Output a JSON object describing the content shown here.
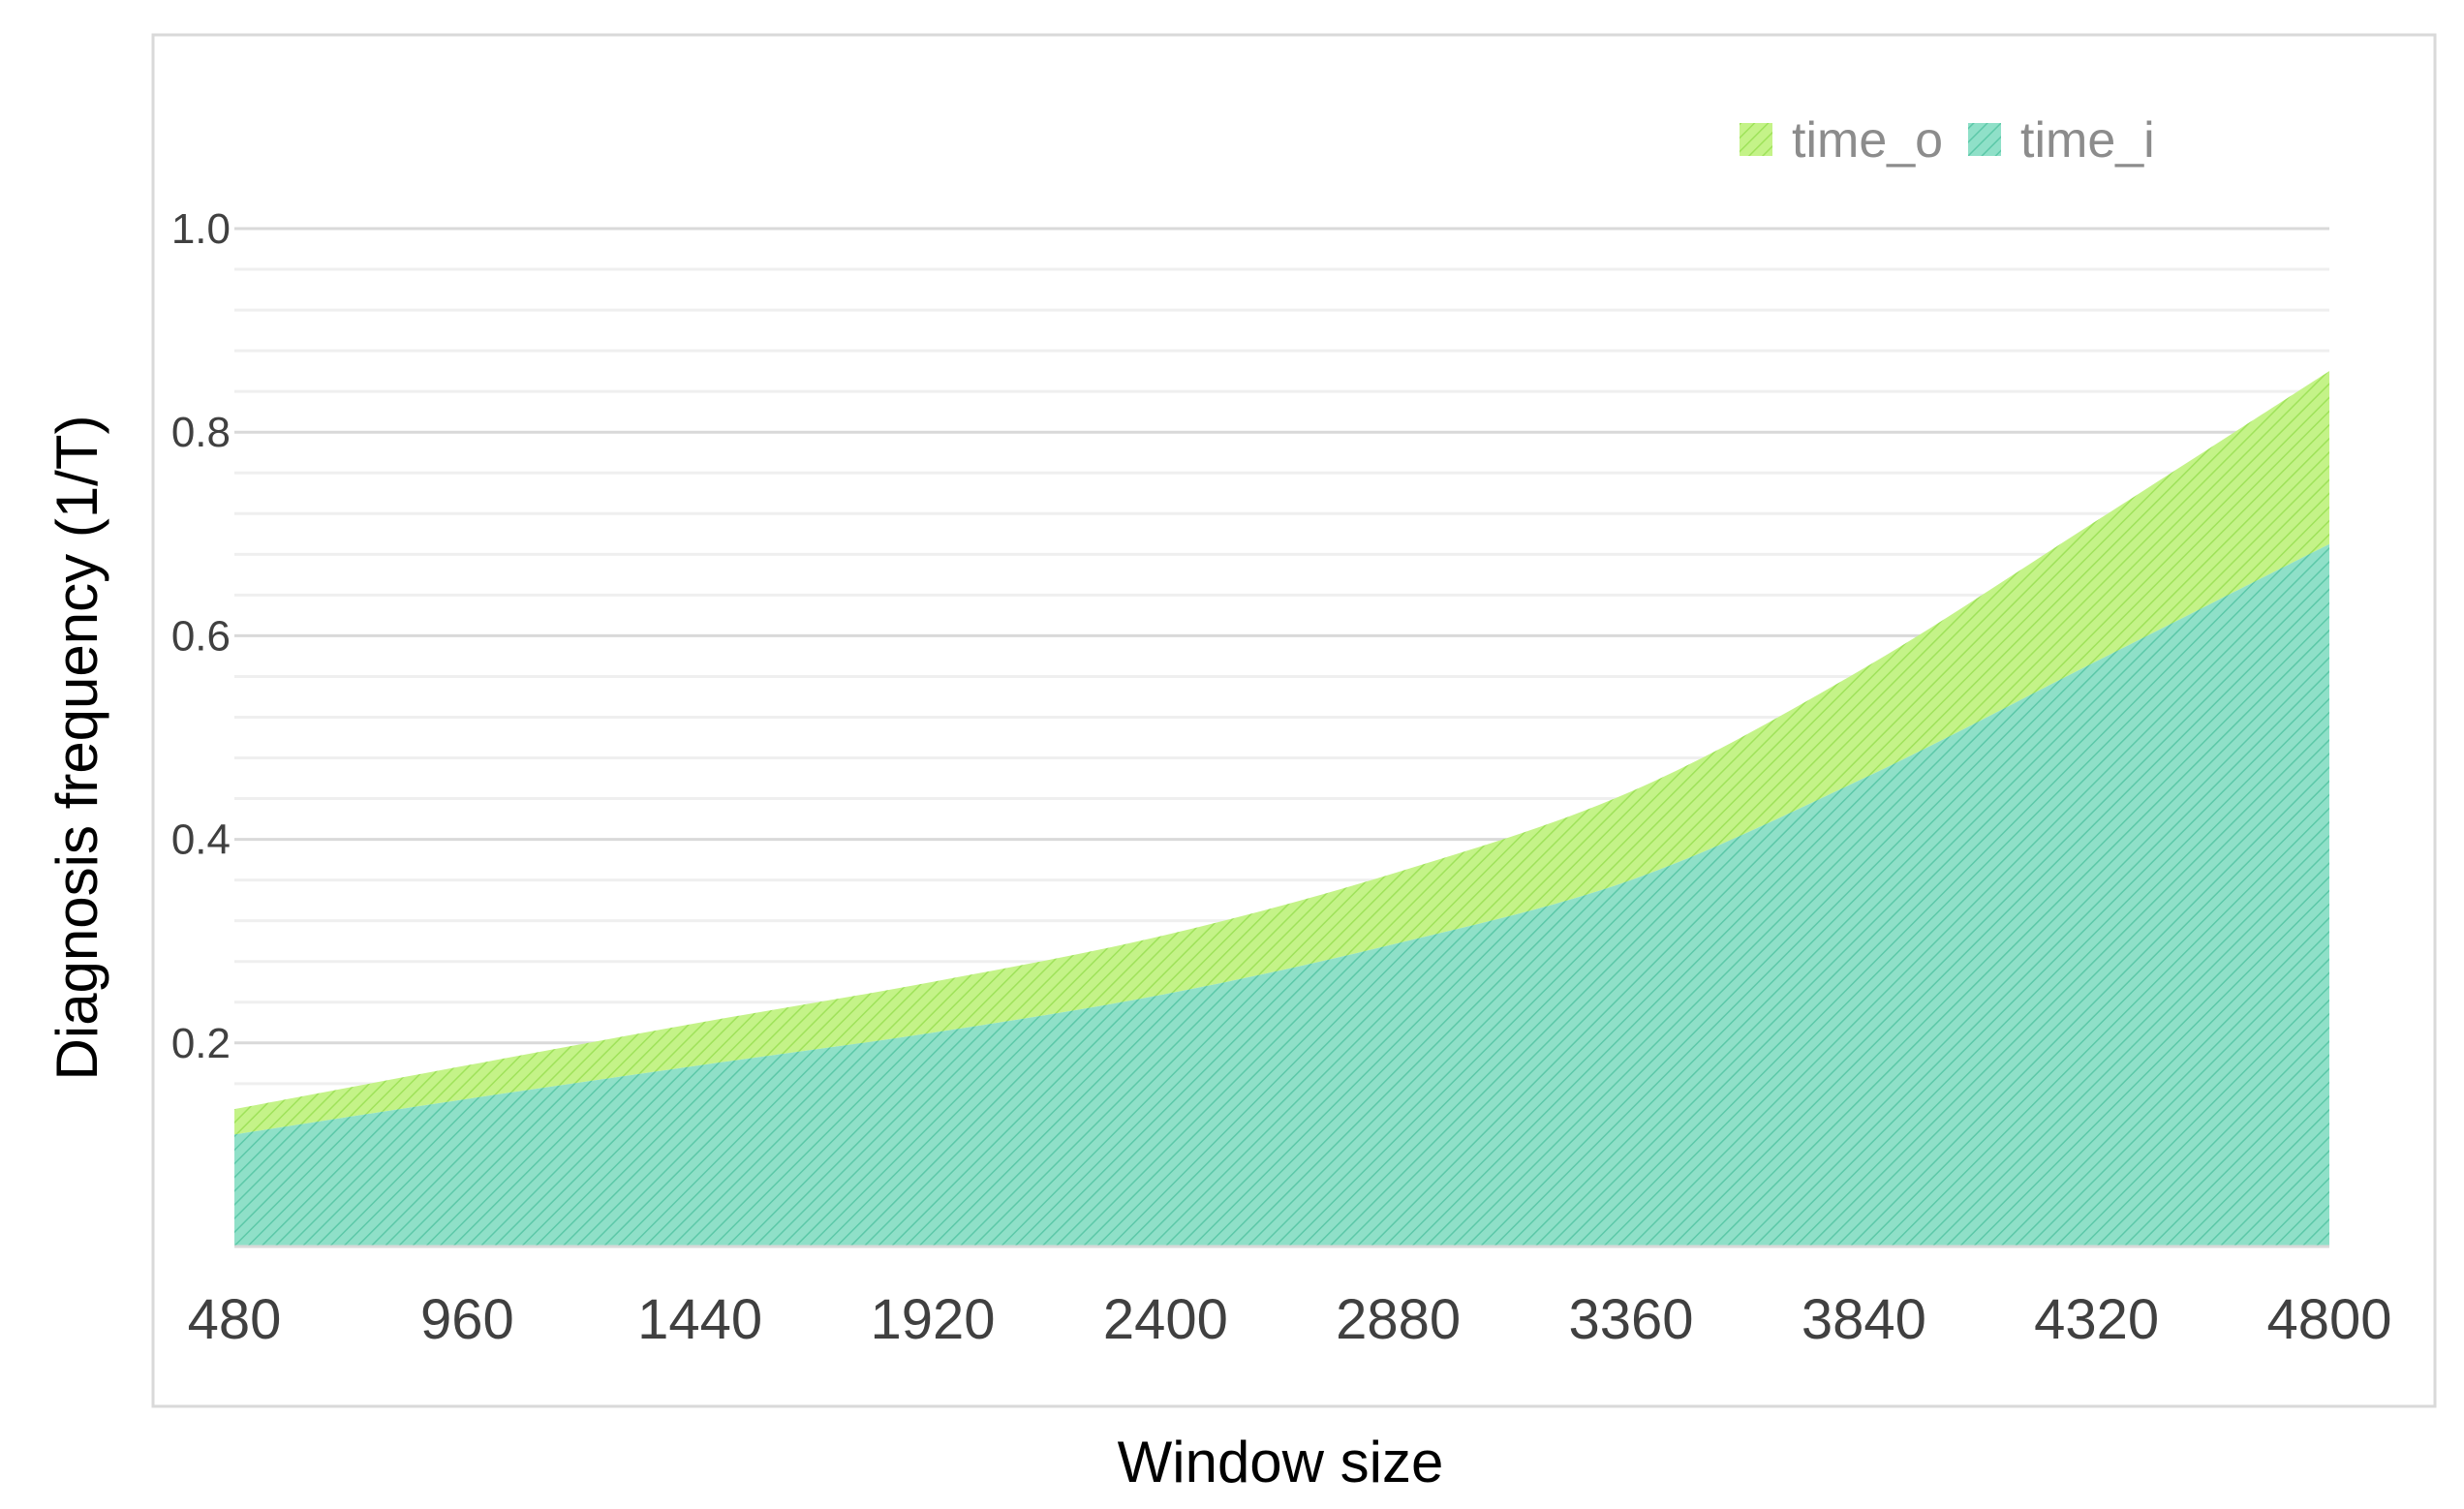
{
  "chart_data": {
    "type": "area",
    "stacked": true,
    "xlabel": "Window size",
    "ylabel": "Diagnosis frequency (1/T)",
    "x": [
      480,
      960,
      1440,
      1920,
      2400,
      2880,
      3360,
      3840,
      4320,
      4800
    ],
    "x_tick_labels": [
      "480",
      "960",
      "1440",
      "1920",
      "2400",
      "2880",
      "3360",
      "3840",
      "4320",
      "4800"
    ],
    "y_tick_labels": [
      "0.2",
      "0.4",
      "0.6",
      "0.8",
      "1.0"
    ],
    "y_ticks": [
      0.2,
      0.4,
      0.6,
      0.8,
      1.0
    ],
    "ylim": [
      0,
      1.0
    ],
    "grid": true,
    "legend_position": "top-right",
    "series": [
      {
        "name": "time_i",
        "color": "#7fdcc0",
        "values": [
          0.11,
          0.145,
          0.178,
          0.21,
          0.248,
          0.298,
          0.36,
          0.46,
          0.575,
          0.69
        ]
      },
      {
        "name": "time_o",
        "color": "#b5ef70",
        "values": [
          0.025,
          0.033,
          0.042,
          0.05,
          0.058,
          0.07,
          0.087,
          0.108,
          0.138,
          0.17
        ]
      }
    ]
  }
}
